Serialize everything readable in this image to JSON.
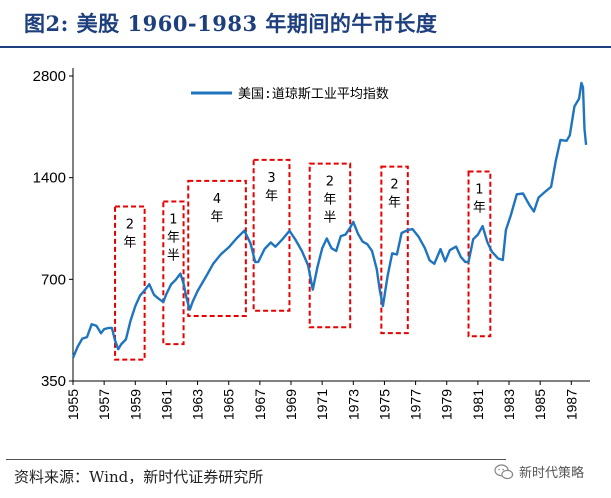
{
  "title": "图2:   美股 1960-1983 年期间的牛市长度",
  "source": "资料来源：Wind，新时代证券研究所",
  "watermark": {
    "icon": "wechat-icon",
    "label": "新时代策略"
  },
  "chart_data": {
    "type": "line",
    "yscale": "log",
    "ylim": [
      350,
      2800
    ],
    "yticks": [
      350,
      700,
      1400,
      2800
    ],
    "xlim": [
      1955,
      1988.2
    ],
    "xticks": [
      "1955",
      "1957",
      "1959",
      "1961",
      "1963",
      "1965",
      "1967",
      "1969",
      "1971",
      "1973",
      "1975",
      "1977",
      "1979",
      "1981",
      "1983",
      "1985",
      "1987"
    ],
    "grid": false,
    "legend_position": "top-left",
    "colors": {
      "series": "#1f74bf",
      "boxes": "#e60000"
    },
    "series": [
      {
        "name": "美国:道琼斯工业平均指数",
        "points": [
          [
            1955.0,
            410
          ],
          [
            1955.3,
            440
          ],
          [
            1955.6,
            470
          ],
          [
            1955.9,
            480
          ],
          [
            1956.2,
            510
          ],
          [
            1956.5,
            510
          ],
          [
            1956.8,
            490
          ],
          [
            1957.0,
            490
          ],
          [
            1957.3,
            500
          ],
          [
            1957.5,
            505
          ],
          [
            1957.7,
            470
          ],
          [
            1957.9,
            430
          ],
          [
            1958.1,
            450
          ],
          [
            1958.4,
            470
          ],
          [
            1958.7,
            520
          ],
          [
            1959.0,
            580
          ],
          [
            1959.3,
            630
          ],
          [
            1959.6,
            660
          ],
          [
            1959.9,
            670
          ],
          [
            1960.2,
            630
          ],
          [
            1960.5,
            620
          ],
          [
            1960.8,
            590
          ],
          [
            1961.0,
            630
          ],
          [
            1961.3,
            680
          ],
          [
            1961.6,
            710
          ],
          [
            1961.9,
            720
          ],
          [
            1962.1,
            680
          ],
          [
            1962.3,
            620
          ],
          [
            1962.5,
            560
          ],
          [
            1962.7,
            600
          ],
          [
            1963.0,
            650
          ],
          [
            1963.5,
            720
          ],
          [
            1964.0,
            770
          ],
          [
            1964.5,
            830
          ],
          [
            1965.0,
            880
          ],
          [
            1965.5,
            910
          ],
          [
            1966.0,
            970
          ],
          [
            1966.4,
            900
          ],
          [
            1966.7,
            800
          ],
          [
            1966.9,
            780
          ],
          [
            1967.3,
            860
          ],
          [
            1967.7,
            910
          ],
          [
            1968.0,
            860
          ],
          [
            1968.4,
            910
          ],
          [
            1968.9,
            980
          ],
          [
            1969.3,
            930
          ],
          [
            1969.7,
            840
          ],
          [
            1970.1,
            770
          ],
          [
            1970.4,
            660
          ],
          [
            1970.7,
            750
          ],
          [
            1971.0,
            860
          ],
          [
            1971.3,
            930
          ],
          [
            1971.6,
            880
          ],
          [
            1971.9,
            840
          ],
          [
            1972.2,
            940
          ],
          [
            1972.5,
            960
          ],
          [
            1972.8,
            980
          ],
          [
            1973.0,
            1030
          ],
          [
            1973.3,
            960
          ],
          [
            1973.6,
            920
          ],
          [
            1973.9,
            880
          ],
          [
            1974.2,
            850
          ],
          [
            1974.5,
            760
          ],
          [
            1974.7,
            640
          ],
          [
            1974.9,
            580
          ],
          [
            1975.2,
            720
          ],
          [
            1975.5,
            850
          ],
          [
            1975.8,
            820
          ],
          [
            1976.1,
            960
          ],
          [
            1976.5,
            990
          ],
          [
            1976.8,
            970
          ],
          [
            1977.2,
            930
          ],
          [
            1977.6,
            870
          ],
          [
            1977.9,
            810
          ],
          [
            1978.2,
            770
          ],
          [
            1978.6,
            860
          ],
          [
            1978.9,
            800
          ],
          [
            1979.2,
            840
          ],
          [
            1979.6,
            870
          ],
          [
            1979.9,
            820
          ],
          [
            1980.2,
            800
          ],
          [
            1980.4,
            780
          ],
          [
            1980.7,
            920
          ],
          [
            1981.0,
            960
          ],
          [
            1981.3,
            990
          ],
          [
            1981.6,
            900
          ],
          [
            1981.9,
            850
          ],
          [
            1982.3,
            820
          ],
          [
            1982.6,
            790
          ],
          [
            1982.8,
            980
          ],
          [
            1983.1,
            1090
          ],
          [
            1983.5,
            1230
          ],
          [
            1983.9,
            1250
          ],
          [
            1984.3,
            1170
          ],
          [
            1984.6,
            1130
          ],
          [
            1984.9,
            1210
          ],
          [
            1985.3,
            1270
          ],
          [
            1985.7,
            1330
          ],
          [
            1986.0,
            1540
          ],
          [
            1986.3,
            1800
          ],
          [
            1986.7,
            1810
          ],
          [
            1986.9,
            1900
          ],
          [
            1987.2,
            2250
          ],
          [
            1987.5,
            2400
          ],
          [
            1987.65,
            2700
          ],
          [
            1987.75,
            2550
          ],
          [
            1987.85,
            1950
          ],
          [
            1987.95,
            1750
          ]
        ]
      }
    ],
    "annotations": [
      {
        "label": "2年",
        "x_range": [
          1957.7,
          1959.6
        ],
        "y_range": [
          405,
          1150
        ]
      },
      {
        "label": "1年半",
        "x_range": [
          1960.8,
          1962.1
        ],
        "y_range": [
          450,
          1190
        ]
      },
      {
        "label": "4年",
        "x_range": [
          1962.4,
          1966.1
        ],
        "y_range": [
          545,
          1370
        ]
      },
      {
        "label": "3年",
        "x_range": [
          1966.6,
          1968.9
        ],
        "y_range": [
          565,
          1580
        ]
      },
      {
        "label": "2年半",
        "x_range": [
          1970.2,
          1972.8
        ],
        "y_range": [
          505,
          1540
        ]
      },
      {
        "label": "2年",
        "x_range": [
          1974.8,
          1976.5
        ],
        "y_range": [
          485,
          1510
        ]
      },
      {
        "label": "1年",
        "x_range": [
          1980.4,
          1981.8
        ],
        "y_range": [
          475,
          1460
        ]
      }
    ]
  }
}
